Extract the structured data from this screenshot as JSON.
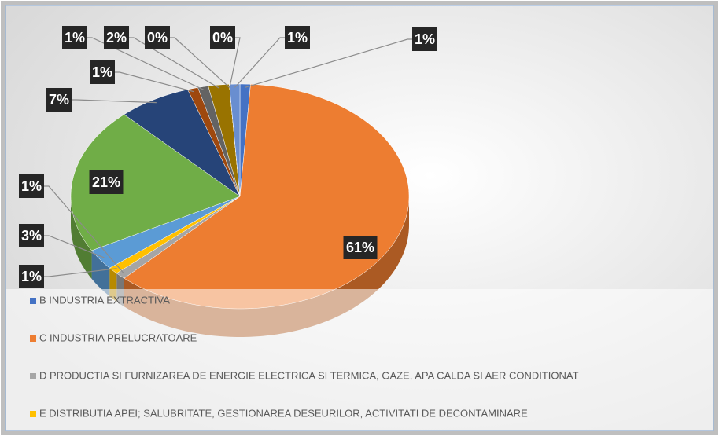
{
  "chart_data": {
    "type": "pie",
    "categories": [
      "B INDUSTRIA EXTRACTIVA",
      "C INDUSTRIA PRELUCRATOARE",
      "D PRODUCTIA SI FURNIZAREA DE ENERGIE ELECTRICA SI TERMICA, GAZE, APA CALDA SI AER CONDITIONAT",
      "E DISTRIBUTIA APEI; SALUBRITATE, GESTIONAREA DESEURILOR, ACTIVITATI DE DECONTAMINARE",
      null,
      null,
      null,
      null,
      null,
      null,
      null,
      null,
      null
    ],
    "values": [
      1,
      61,
      1,
      1,
      3,
      21,
      7,
      1,
      1,
      2,
      0,
      0,
      1
    ],
    "value_labels": [
      "1%",
      "61%",
      "1%",
      "1%",
      "3%",
      "21%",
      "7%",
      "1%",
      "1%",
      "2%",
      "0%",
      "0%",
      "1%"
    ],
    "colors": [
      "#4472c4",
      "#ed7d31",
      "#a5a5a5",
      "#ffc000",
      "#5b9bd5",
      "#70ad47",
      "#264478",
      "#9e480e",
      "#636363",
      "#997300",
      "#255e91",
      "#43682b",
      "#698ed0"
    ]
  }
}
